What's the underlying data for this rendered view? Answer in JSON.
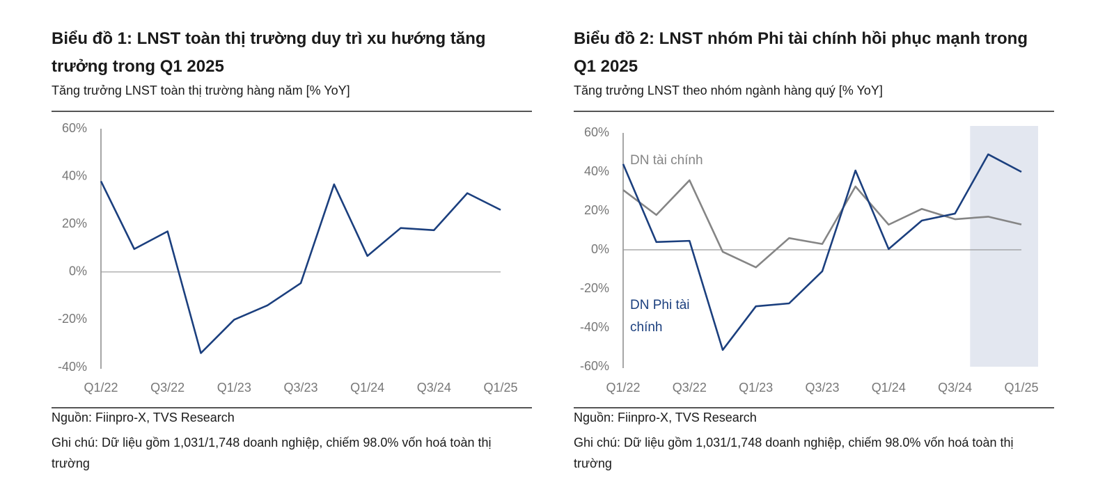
{
  "chart_data": [
    {
      "type": "line",
      "title": "Biểu đồ 1: LNST toàn thị trường duy trì xu hướng tăng trưởng trong Q1 2025",
      "subtitle": "Tăng trưởng LNST toàn thị trường hàng năm [% YoY]",
      "categories": [
        "Q1/22",
        null,
        "Q3/22",
        null,
        "Q1/23",
        null,
        "Q3/23",
        null,
        "Q1/24",
        null,
        "Q3/24",
        null,
        "Q1/25"
      ],
      "series": [
        {
          "color": "#1b3f7e",
          "values": [
            38,
            9.6,
            17,
            -34,
            -20,
            -14,
            -4.7,
            36.7,
            6.7,
            18.4,
            17.5,
            33,
            26
          ]
        }
      ],
      "ylim": [
        -40,
        60
      ],
      "yticks": [
        {
          "value": -40,
          "label": "-40%"
        },
        {
          "value": -20,
          "label": "-20%"
        },
        {
          "value": 0,
          "label": "0%"
        },
        {
          "value": 20,
          "label": "20%"
        },
        {
          "value": 40,
          "label": "40%"
        },
        {
          "value": 60,
          "label": "60%"
        }
      ],
      "source": "Nguồn: Fiinpro-X, TVS Research",
      "note": "Ghi chú: Dữ liệu gồm 1,031/1,748 doanh nghiệp, chiếm 98.0% vốn hoá toàn thị trường"
    },
    {
      "type": "line",
      "title": "Biểu đồ 2: LNST nhóm Phi tài chính hồi phục mạnh trong Q1 2025",
      "subtitle": "Tăng trưởng LNST theo nhóm ngành hàng quý [% YoY]",
      "categories": [
        "Q1/22",
        null,
        "Q3/22",
        null,
        "Q1/23",
        null,
        "Q3/23",
        null,
        "Q1/24",
        null,
        "Q3/24",
        null,
        "Q1/25"
      ],
      "series": [
        {
          "name": "DN tài chính",
          "color": "#858585",
          "values": [
            30.7,
            17.9,
            35.7,
            -1,
            -9,
            6,
            3,
            32.5,
            12.9,
            21,
            15.7,
            17,
            13
          ]
        },
        {
          "name": "DN Phi tài chính",
          "color": "#1b3f7e",
          "values": [
            44,
            4,
            4.6,
            -51.4,
            -29,
            -27.5,
            -11,
            40.7,
            0.4,
            15,
            18.6,
            49,
            40
          ]
        }
      ],
      "ylim": [
        -60,
        60
      ],
      "yticks": [
        {
          "value": -60,
          "label": "-60%"
        },
        {
          "value": -40,
          "label": "-40%"
        },
        {
          "value": -20,
          "label": "-20%"
        },
        {
          "value": 0,
          "label": "0%"
        },
        {
          "value": 20,
          "label": "20%"
        },
        {
          "value": 40,
          "label": "40%"
        },
        {
          "value": 60,
          "label": "60%"
        }
      ],
      "source": "Nguồn: Fiinpro-X, TVS Research",
      "note": "Ghi chú: Dữ liệu gồm 1,031/1,748 doanh nghiệp, chiếm 98.0% vốn hoá toàn thị trường"
    }
  ]
}
